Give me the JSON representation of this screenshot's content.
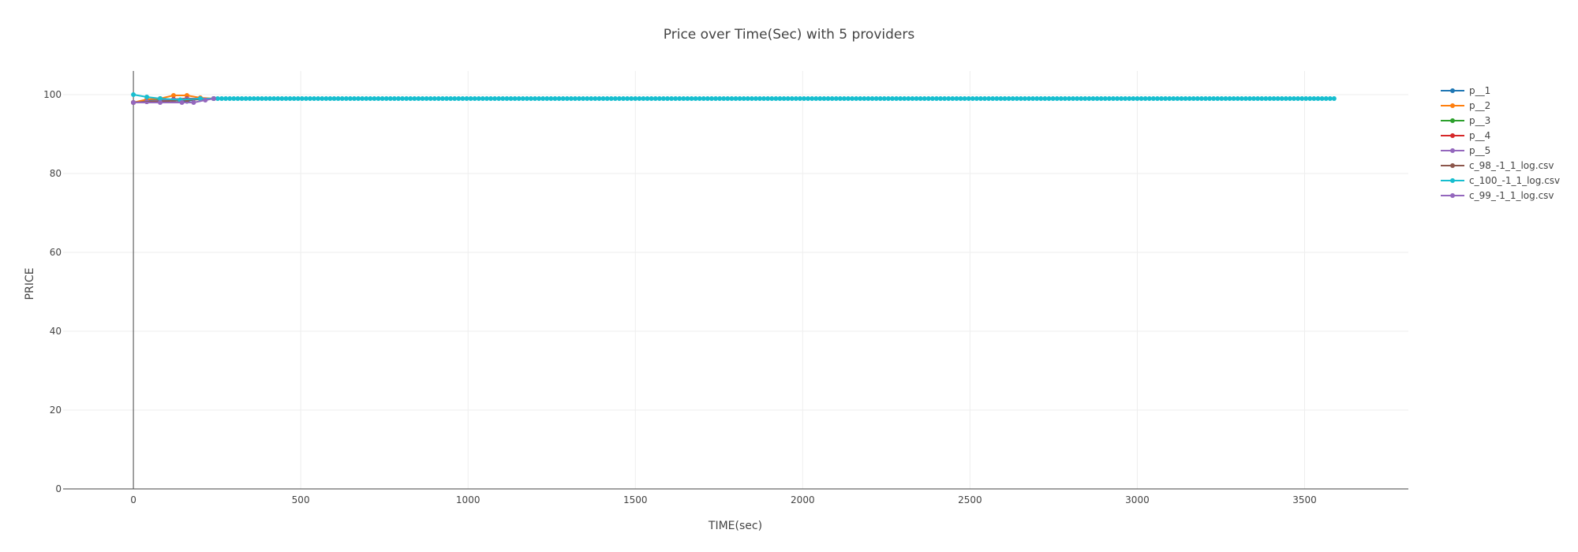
{
  "chart_data": {
    "type": "line",
    "title": "Price over Time(Sec) with 5 providers",
    "xlabel": "TIME(sec)",
    "ylabel": "PRICE",
    "xlim": [
      -210,
      3810
    ],
    "ylim": [
      0,
      106
    ],
    "x_ticks": [
      0,
      500,
      1000,
      1500,
      2000,
      2500,
      3000,
      3500
    ],
    "y_ticks": [
      0,
      20,
      40,
      60,
      80,
      100
    ],
    "grid": true,
    "legend_position": "right",
    "series": [
      {
        "name": "p__1",
        "color": "#1f77b4",
        "x": [
          0,
          40,
          80,
          120,
          160,
          200,
          240
        ],
        "y": [
          98,
          98.5,
          99,
          98.5,
          98.3,
          99,
          99
        ]
      },
      {
        "name": "p__2",
        "color": "#ff7f0e",
        "x": [
          0,
          40,
          80,
          120,
          160,
          200,
          240
        ],
        "y": [
          98,
          98.8,
          99,
          99.8,
          99.8,
          99.2,
          99
        ]
      },
      {
        "name": "p__3",
        "color": "#2ca02c",
        "x": [
          0,
          40,
          80,
          120,
          160,
          200,
          240
        ],
        "y": [
          98,
          98.2,
          98.6,
          98.8,
          99,
          99,
          99
        ]
      },
      {
        "name": "p__4",
        "color": "#d62728",
        "x": [
          0,
          40,
          80,
          120,
          160,
          200,
          240
        ],
        "y": [
          98,
          98.2,
          98.4,
          98.8,
          99,
          99,
          99
        ]
      },
      {
        "name": "p__5",
        "color": "#9467bd",
        "x": [
          0,
          40,
          80,
          120,
          160,
          200,
          240
        ],
        "y": [
          98,
          98.2,
          98.5,
          98.7,
          98.9,
          99,
          99
        ]
      },
      {
        "name": "c_98_-1_1_log.csv",
        "color": "#8c564b",
        "x": [
          0,
          80,
          160,
          240
        ],
        "y": [
          98,
          98.3,
          98.6,
          99
        ]
      },
      {
        "name": "c_100_-1_1_log.csv",
        "color": "#17becf",
        "x": [
          0,
          40,
          80,
          140,
          200,
          240
        ],
        "y": [
          100,
          99.4,
          99,
          98.7,
          99,
          99
        ],
        "steady_value": 99,
        "steady_from": 240,
        "steady_to": 3590
      },
      {
        "name": "c_99_-1_1_log.csv",
        "color": "#9467bd",
        "x": [
          0,
          80,
          145,
          180,
          215,
          240
        ],
        "y": [
          98,
          98,
          98,
          98,
          98.6,
          99
        ]
      }
    ]
  }
}
